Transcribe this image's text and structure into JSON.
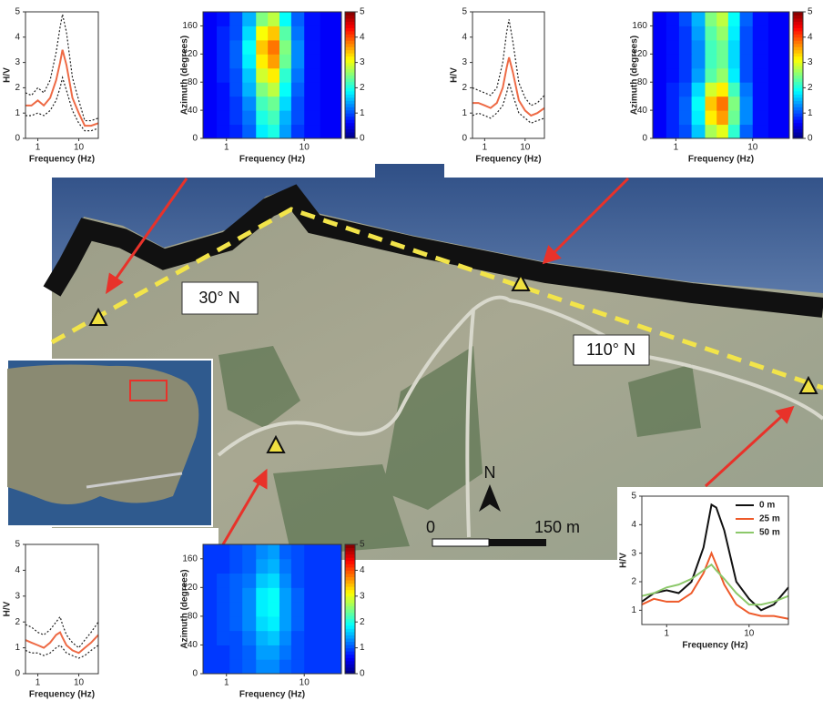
{
  "chart_data": [
    {
      "type": "line",
      "xlabel": "Frequency (Hz)",
      "ylabel": "H/V",
      "xscale": "log",
      "x": [
        0.5,
        0.7,
        1,
        1.4,
        2,
        2.8,
        3.5,
        4,
        5,
        7,
        10,
        14,
        20,
        30
      ],
      "xlim": [
        0.5,
        30
      ],
      "xticks": [
        1,
        10
      ],
      "ylim": [
        0,
        5
      ],
      "yticks": [
        0,
        1,
        2,
        3,
        4,
        5
      ],
      "series": [
        {
          "color": "#ee6a45",
          "linestyle": "solid",
          "values": [
            1.3,
            1.3,
            1.5,
            1.3,
            1.6,
            2.3,
            3.0,
            3.5,
            2.9,
            1.6,
            1.0,
            0.5,
            0.5,
            0.6
          ]
        },
        {
          "color": "#222222",
          "linestyle": "dotted",
          "values": [
            1.8,
            1.7,
            2.0,
            1.8,
            2.3,
            3.4,
            4.4,
            4.9,
            4.2,
            2.4,
            1.5,
            0.7,
            0.7,
            0.8
          ]
        },
        {
          "color": "#222222",
          "linestyle": "dotted",
          "values": [
            0.9,
            0.9,
            1.0,
            0.9,
            1.1,
            1.5,
            2.0,
            2.4,
            1.9,
            1.1,
            0.6,
            0.3,
            0.3,
            0.4
          ]
        }
      ]
    },
    {
      "type": "heatmap",
      "xlabel": "Frequency (Hz)",
      "ylabel": "Azimuth (degrees)",
      "xscale": "log",
      "xbins": [
        0.5,
        0.75,
        1.1,
        1.6,
        2.4,
        3.4,
        4.8,
        6.8,
        10,
        16,
        30
      ],
      "ybins": [
        0,
        20,
        40,
        60,
        80,
        100,
        120,
        140,
        160,
        180
      ],
      "xlim": [
        0.5,
        30
      ],
      "xticks": [
        1,
        10
      ],
      "ylim": [
        0,
        180
      ],
      "yticks": [
        0,
        40,
        80,
        120,
        160
      ],
      "colormap": "jet",
      "clim": [
        0,
        5
      ],
      "cticks": [
        0,
        1,
        2,
        3,
        4,
        5
      ],
      "values": [
        [
          0.6,
          0.7,
          0.8,
          1.1,
          1.8,
          2.0,
          1.4,
          0.9,
          0.7,
          0.6
        ],
        [
          0.6,
          0.7,
          0.9,
          1.2,
          2.0,
          2.2,
          1.5,
          1.0,
          0.7,
          0.6
        ],
        [
          0.6,
          0.7,
          0.9,
          1.3,
          2.2,
          2.4,
          1.7,
          1.0,
          0.7,
          0.6
        ],
        [
          0.6,
          0.7,
          1.0,
          1.5,
          2.5,
          2.8,
          1.9,
          1.1,
          0.7,
          0.6
        ],
        [
          0.6,
          0.8,
          1.0,
          1.6,
          2.9,
          3.2,
          2.1,
          1.2,
          0.7,
          0.6
        ],
        [
          0.6,
          0.8,
          1.1,
          1.8,
          3.2,
          3.6,
          2.4,
          1.3,
          0.7,
          0.6
        ],
        [
          0.6,
          0.8,
          1.1,
          1.9,
          3.4,
          3.8,
          2.5,
          1.3,
          0.7,
          0.6
        ],
        [
          0.6,
          0.8,
          1.0,
          1.7,
          3.1,
          3.4,
          2.3,
          1.2,
          0.7,
          0.6
        ],
        [
          0.6,
          0.7,
          1.0,
          1.5,
          2.5,
          2.8,
          1.9,
          1.1,
          0.7,
          0.6
        ]
      ]
    },
    {
      "type": "line",
      "xlabel": "Frequency (Hz)",
      "ylabel": "H/V",
      "xscale": "log",
      "x": [
        0.5,
        0.7,
        1,
        1.4,
        2,
        2.8,
        3.5,
        4,
        5,
        7,
        10,
        14,
        20,
        30
      ],
      "xlim": [
        0.5,
        30
      ],
      "xticks": [
        1,
        10
      ],
      "ylim": [
        0,
        5
      ],
      "yticks": [
        0,
        1,
        2,
        3,
        4,
        5
      ],
      "series": [
        {
          "color": "#ee6a45",
          "linestyle": "solid",
          "values": [
            1.4,
            1.4,
            1.3,
            1.2,
            1.4,
            2.0,
            2.8,
            3.2,
            2.6,
            1.5,
            1.1,
            0.9,
            1.0,
            1.2
          ]
        },
        {
          "color": "#222222",
          "linestyle": "dotted",
          "values": [
            2.0,
            1.9,
            1.8,
            1.7,
            2.0,
            3.0,
            4.2,
            4.7,
            3.8,
            2.2,
            1.6,
            1.3,
            1.4,
            1.7
          ]
        },
        {
          "color": "#222222",
          "linestyle": "dotted",
          "values": [
            0.9,
            1.0,
            0.9,
            0.8,
            1.0,
            1.3,
            1.8,
            2.2,
            1.7,
            1.0,
            0.8,
            0.6,
            0.7,
            0.8
          ]
        }
      ]
    },
    {
      "type": "heatmap",
      "xlabel": "Frequency (Hz)",
      "ylabel": "Azimuth (degrees)",
      "xscale": "log",
      "xbins": [
        0.5,
        0.75,
        1.1,
        1.6,
        2.4,
        3.4,
        4.8,
        6.8,
        10,
        16,
        30
      ],
      "ybins": [
        0,
        20,
        40,
        60,
        80,
        100,
        120,
        140,
        160,
        180
      ],
      "xlim": [
        0.5,
        30
      ],
      "xticks": [
        1,
        10
      ],
      "ylim": [
        0,
        180
      ],
      "yticks": [
        0,
        40,
        80,
        120,
        160
      ],
      "colormap": "jet",
      "clim": [
        0,
        5
      ],
      "cticks": [
        0,
        1,
        2,
        3,
        4,
        5
      ],
      "values": [
        [
          0.6,
          0.8,
          1.0,
          1.6,
          2.7,
          3.0,
          2.1,
          1.1,
          0.7,
          0.6
        ],
        [
          0.6,
          0.8,
          1.1,
          1.8,
          3.2,
          3.6,
          2.4,
          1.3,
          0.7,
          0.6
        ],
        [
          0.6,
          0.8,
          1.1,
          1.9,
          3.4,
          3.8,
          2.5,
          1.3,
          0.7,
          0.6
        ],
        [
          0.6,
          0.8,
          1.0,
          1.7,
          2.9,
          3.2,
          2.2,
          1.2,
          0.7,
          0.6
        ],
        [
          0.6,
          0.7,
          0.9,
          1.4,
          2.3,
          2.6,
          1.8,
          1.0,
          0.7,
          0.6
        ],
        [
          0.6,
          0.7,
          0.9,
          1.3,
          2.2,
          2.4,
          1.7,
          1.0,
          0.7,
          0.6
        ],
        [
          0.6,
          0.7,
          0.9,
          1.3,
          2.2,
          2.4,
          1.7,
          1.0,
          0.7,
          0.6
        ],
        [
          0.6,
          0.7,
          0.9,
          1.4,
          2.3,
          2.6,
          1.8,
          1.0,
          0.7,
          0.6
        ],
        [
          0.6,
          0.7,
          1.0,
          1.5,
          2.5,
          2.8,
          1.9,
          1.1,
          0.7,
          0.6
        ]
      ]
    },
    {
      "type": "line",
      "xlabel": "Frequency (Hz)",
      "ylabel": "H/V",
      "xscale": "log",
      "x": [
        0.5,
        0.7,
        1,
        1.4,
        2,
        2.8,
        3.5,
        4,
        5,
        7,
        10,
        14,
        20,
        30
      ],
      "xlim": [
        0.5,
        30
      ],
      "xticks": [
        1,
        10
      ],
      "ylim": [
        0,
        5
      ],
      "yticks": [
        0,
        1,
        2,
        3,
        4,
        5
      ],
      "series": [
        {
          "color": "#ee6a45",
          "linestyle": "solid",
          "values": [
            1.3,
            1.2,
            1.1,
            1.0,
            1.2,
            1.5,
            1.6,
            1.4,
            1.1,
            0.9,
            0.8,
            1.0,
            1.2,
            1.5
          ]
        },
        {
          "color": "#222222",
          "linestyle": "dotted",
          "values": [
            1.9,
            1.8,
            1.6,
            1.5,
            1.7,
            2.0,
            2.2,
            1.9,
            1.5,
            1.2,
            1.0,
            1.3,
            1.6,
            2.0
          ]
        },
        {
          "color": "#222222",
          "linestyle": "dotted",
          "values": [
            0.9,
            0.8,
            0.8,
            0.7,
            0.8,
            1.0,
            1.1,
            1.0,
            0.8,
            0.7,
            0.6,
            0.7,
            0.9,
            1.1
          ]
        }
      ]
    },
    {
      "type": "heatmap",
      "xlabel": "Frequency (Hz)",
      "ylabel": "Azimuth (degrees)",
      "xscale": "log",
      "xbins": [
        0.5,
        0.75,
        1.1,
        1.6,
        2.4,
        3.4,
        4.8,
        6.8,
        10,
        16,
        30
      ],
      "ybins": [
        0,
        20,
        40,
        60,
        80,
        100,
        120,
        140,
        160,
        180
      ],
      "xlim": [
        0.5,
        30
      ],
      "xticks": [
        1,
        10
      ],
      "ylim": [
        0,
        180
      ],
      "yticks": [
        0,
        40,
        80,
        120,
        160
      ],
      "colormap": "jet",
      "clim": [
        0,
        5
      ],
      "cticks": [
        0,
        1,
        2,
        3,
        4,
        5
      ],
      "values": [
        [
          0.9,
          0.9,
          1.0,
          1.1,
          1.3,
          1.3,
          1.1,
          1.0,
          0.9,
          0.9
        ],
        [
          0.9,
          0.9,
          1.0,
          1.1,
          1.4,
          1.4,
          1.2,
          1.0,
          0.9,
          0.9
        ],
        [
          0.9,
          1.0,
          1.0,
          1.2,
          1.5,
          1.6,
          1.3,
          1.0,
          0.9,
          0.9
        ],
        [
          0.9,
          1.0,
          1.1,
          1.3,
          1.7,
          1.8,
          1.4,
          1.1,
          0.9,
          0.9
        ],
        [
          0.9,
          1.0,
          1.1,
          1.3,
          1.8,
          1.9,
          1.4,
          1.1,
          0.9,
          0.9
        ],
        [
          0.9,
          1.0,
          1.1,
          1.3,
          1.8,
          1.9,
          1.4,
          1.1,
          0.9,
          0.9
        ],
        [
          0.9,
          1.0,
          1.1,
          1.2,
          1.6,
          1.7,
          1.3,
          1.0,
          0.9,
          0.9
        ],
        [
          0.9,
          0.9,
          1.0,
          1.1,
          1.4,
          1.5,
          1.2,
          1.0,
          0.9,
          0.9
        ],
        [
          0.9,
          0.9,
          1.0,
          1.1,
          1.3,
          1.4,
          1.1,
          1.0,
          0.9,
          0.9
        ]
      ]
    },
    {
      "type": "line",
      "xlabel": "Frequency (Hz)",
      "ylabel": "H/V",
      "xscale": "log",
      "legend": "upper right",
      "x": [
        0.5,
        0.7,
        1,
        1.4,
        2,
        2.8,
        3.5,
        4,
        5,
        7,
        10,
        14,
        20,
        30
      ],
      "xlim": [
        0.5,
        30
      ],
      "xticks": [
        1,
        10
      ],
      "ylim": [
        0.5,
        5
      ],
      "yticks": [
        1,
        2,
        3,
        4,
        5
      ],
      "series": [
        {
          "name": "0 m",
          "color": "#111111",
          "linestyle": "solid",
          "values": [
            1.3,
            1.6,
            1.7,
            1.6,
            2.0,
            3.2,
            4.7,
            4.6,
            3.8,
            2.0,
            1.4,
            1.0,
            1.2,
            1.8
          ]
        },
        {
          "name": "25 m",
          "color": "#ee5a2a",
          "linestyle": "solid",
          "values": [
            1.2,
            1.4,
            1.3,
            1.3,
            1.6,
            2.3,
            3.0,
            2.6,
            1.9,
            1.2,
            0.9,
            0.8,
            0.8,
            0.7
          ]
        },
        {
          "name": "50 m",
          "color": "#8cc86a",
          "linestyle": "solid",
          "values": [
            1.5,
            1.6,
            1.8,
            1.9,
            2.1,
            2.4,
            2.6,
            2.4,
            2.1,
            1.6,
            1.2,
            1.2,
            1.3,
            1.5
          ]
        }
      ]
    }
  ],
  "map": {
    "labels": [
      "30° N",
      "110° N"
    ],
    "north": "N",
    "scale": [
      "0",
      "150 m"
    ]
  }
}
